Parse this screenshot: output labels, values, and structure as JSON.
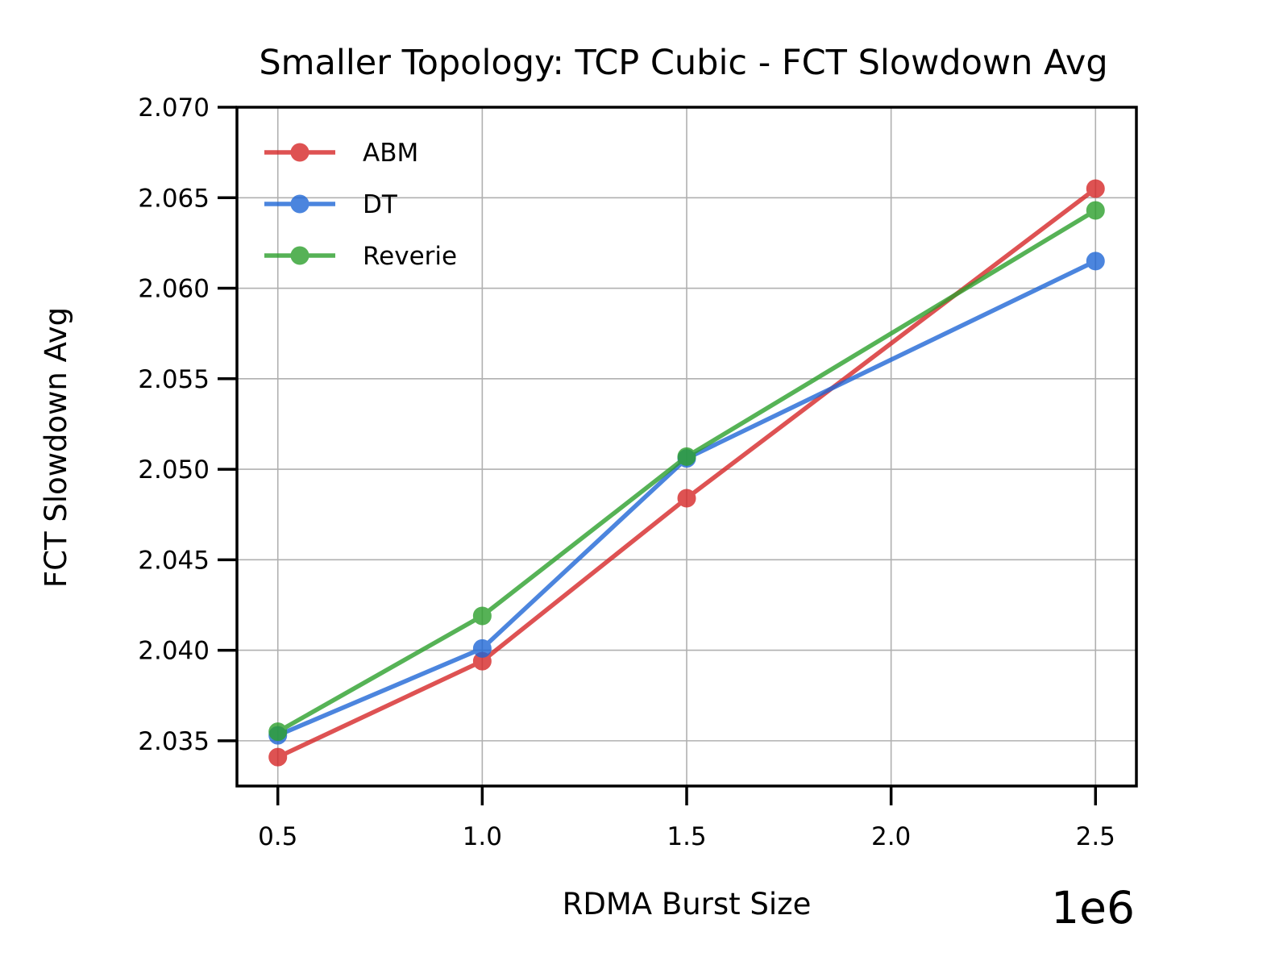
{
  "chart_data": {
    "type": "line",
    "title": "Smaller Topology: TCP Cubic - FCT Slowdown Avg",
    "xlabel": "RDMA Burst Size",
    "ylabel": "FCT Slowdown Avg",
    "x_offset_label": "1e6",
    "x": [
      500000,
      1000000,
      1500000,
      2500000
    ],
    "xlim": [
      400000,
      2600000
    ],
    "ylim": [
      2.0325,
      2.07
    ],
    "xticks": [
      500000,
      1000000,
      1500000,
      2000000,
      2500000
    ],
    "xtick_labels": [
      "0.5",
      "1.0",
      "1.5",
      "2.0",
      "2.5"
    ],
    "yticks": [
      2.035,
      2.04,
      2.045,
      2.05,
      2.055,
      2.06,
      2.065,
      2.07
    ],
    "ytick_labels": [
      "2.035",
      "2.040",
      "2.045",
      "2.050",
      "2.055",
      "2.060",
      "2.065",
      "2.070"
    ],
    "grid": true,
    "legend_position": "top-left",
    "series": [
      {
        "name": "ABM",
        "color": "#d62728",
        "values": [
          2.0341,
          2.0394,
          2.0484,
          2.0655
        ]
      },
      {
        "name": "DT",
        "color": "#1f67d6",
        "values": [
          2.0353,
          2.0401,
          2.0506,
          2.0615
        ]
      },
      {
        "name": "Reverie",
        "color": "#2ca02c",
        "values": [
          2.0355,
          2.0419,
          2.0507,
          2.0643
        ]
      }
    ]
  }
}
